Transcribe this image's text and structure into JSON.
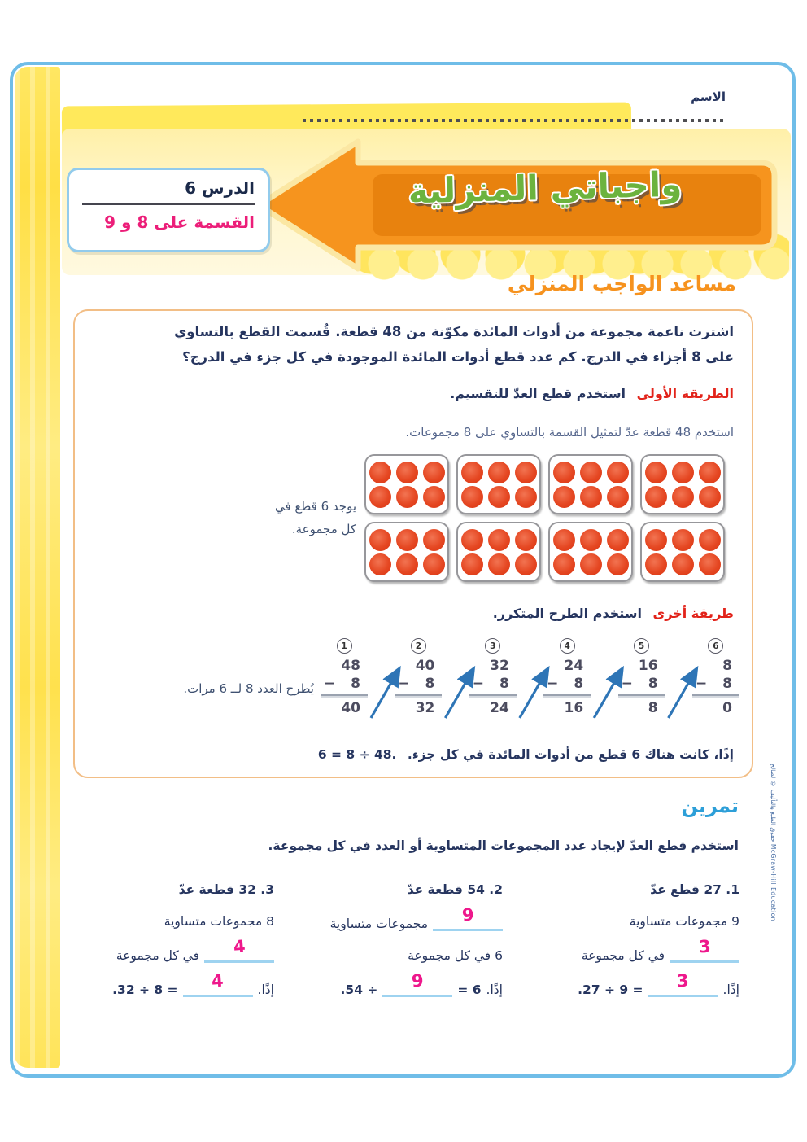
{
  "header": {
    "name_label": "الاسم"
  },
  "banner": {
    "title": "واجباتي المنزلية"
  },
  "lesson_box": {
    "lesson": "الدرس 6",
    "topic": "القسمة على 8 و 9"
  },
  "helper": {
    "heading": "مساعد الواجب المنزلي",
    "problem_line1": "اشترت ناعمة مجموعة من أدوات المائدة مكوّنة من 48 قطعة. قُسمت القطع بالتساوي",
    "problem_line2": "على 8 أجزاء في الدرج. كم عدد قطع أدوات المائدة الموجودة في كل جزء في الدرج؟",
    "method1_label": "الطريقة الأولى",
    "method1_text": "استخدم قطع العدّ للتقسيم.",
    "counters_intro": "استخدم 48 قطعة عدّ لتمثيل القسمة بالتساوي على 8 مجموعات.",
    "counters": {
      "groups": 8,
      "per_group": 6,
      "columns": 4
    },
    "caption_groups_line1": "يوجد 6 قطع في",
    "caption_groups_line2": "كل مجموعة.",
    "method2_label": "طريقة أخرى",
    "method2_text": "استخدم الطرح المتكرر.",
    "subtraction": {
      "minus": "−",
      "steps": [
        {
          "step": 1,
          "minuend": 48,
          "subtrahend": 8,
          "result": 40
        },
        {
          "step": 2,
          "minuend": 40,
          "subtrahend": 8,
          "result": 32
        },
        {
          "step": 3,
          "minuend": 32,
          "subtrahend": 8,
          "result": 24
        },
        {
          "step": 4,
          "minuend": 24,
          "subtrahend": 8,
          "result": 16
        },
        {
          "step": 5,
          "minuend": 16,
          "subtrahend": 8,
          "result": 8
        },
        {
          "step": 6,
          "minuend": 8,
          "subtrahend": 8,
          "result": 0
        }
      ]
    },
    "subtraction_caption": "يُطرح العدد 8 لــ 6 مرات.",
    "conclusion_equation": "6 = 8 ÷ 48.",
    "conclusion_text": "إذًا، كانت هناك 6 قطع من أدوات المائدة في كل جزء."
  },
  "exercise": {
    "heading": "تمرين",
    "instruction": "استخدم قطع العدّ لإيجاد عدد المجموعات المتساوية أو العدد في كل مجموعة.",
    "problems": [
      {
        "number_line": "1. 27 قطع عدّ",
        "rows": [
          {
            "type": "text",
            "text": "9 مجموعات متساوية"
          },
          {
            "type": "mix",
            "items": [
              {
                "k": "blank",
                "v": "3"
              },
              {
                "k": "text",
                "v": "في كل مجموعة"
              }
            ]
          },
          {
            "type": "mix",
            "items": [
              {
                "k": "text",
                "v": "إذًا."
              },
              {
                "k": "blank",
                "v": "3"
              },
              {
                "k": "eq",
                "v": ".27 ÷ 9 ="
              }
            ]
          }
        ]
      },
      {
        "number_line": "2. 54 قطعة عدّ",
        "rows": [
          {
            "type": "mix",
            "items": [
              {
                "k": "blank",
                "v": "9"
              },
              {
                "k": "text",
                "v": "مجموعات متساوية"
              }
            ]
          },
          {
            "type": "text",
            "text": "6 في كل مجموعة"
          },
          {
            "type": "mix",
            "items": [
              {
                "k": "text",
                "v": "إذًا."
              },
              {
                "k": "eq",
                "v": "= 6"
              },
              {
                "k": "blank",
                "v": "9"
              },
              {
                "k": "eq",
                "v": ".54 ÷"
              }
            ]
          }
        ]
      },
      {
        "number_line": "3. 32 قطعة عدّ",
        "rows": [
          {
            "type": "text",
            "text": "8 مجموعات متساوية"
          },
          {
            "type": "mix",
            "items": [
              {
                "k": "blank",
                "v": "4"
              },
              {
                "k": "text",
                "v": "في كل مجموعة"
              }
            ]
          },
          {
            "type": "mix",
            "items": [
              {
                "k": "text",
                "v": "إذًا."
              },
              {
                "k": "blank",
                "v": "4"
              },
              {
                "k": "eq",
                "v": ".32 ÷ 8 ="
              }
            ]
          }
        ]
      }
    ]
  },
  "side_copyright": "حقوق الطبع والتأليف © لصالح McGraw-Hill Education",
  "colors": {
    "accent_orange": "#F6921E",
    "title_green": "#6CB33E",
    "lesson_pink": "#EC1E79",
    "method_red": "#E2231A",
    "navy": "#26355F",
    "body_blue_gray": "#53648B",
    "exercise_blue": "#2D9FD8",
    "counter_red": "#E8431F",
    "arrow_blue": "#2E75B6",
    "answer_pink": "#EE188C",
    "blank_blue": "#9ED3F0",
    "frame_blue": "#6FBDE8",
    "yellow_bright": "#FFE14D",
    "yellow_light": "#FFF3B6",
    "banner_orange": "#F6941E",
    "banner_inner": "#E8820E",
    "banner_outline": "#FBE7A3"
  }
}
